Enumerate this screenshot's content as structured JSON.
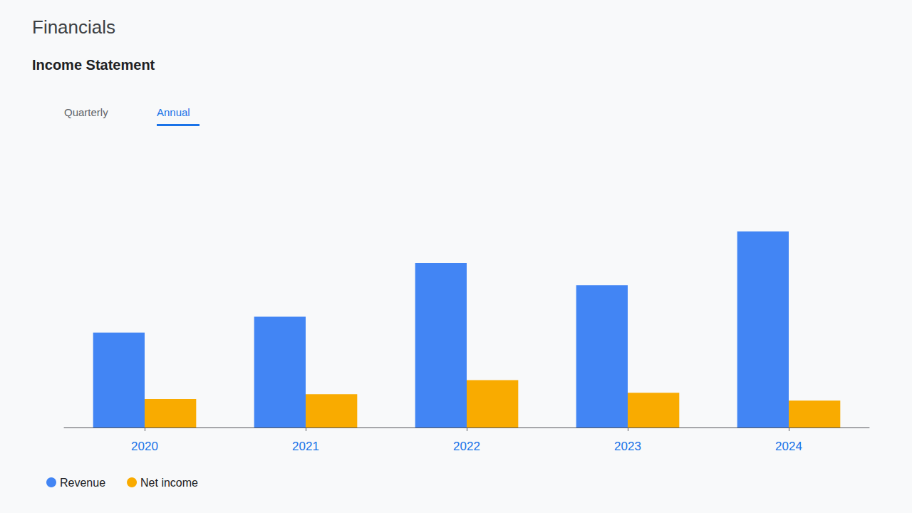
{
  "chart_data": {
    "type": "bar",
    "title": "Financials",
    "subtitle": "Income Statement",
    "annotations": [
      "Quarterly",
      "Annual"
    ],
    "categories": [
      "2020",
      "2021",
      "2022",
      "2023",
      "2024"
    ],
    "series": [
      {
        "name": "Revenue",
        "color": "#4285F4",
        "values": [
          3.0,
          3.5,
          5.2,
          4.5,
          6.2
        ]
      },
      {
        "name": "Net income",
        "color": "#F9AB00",
        "values": [
          0.9,
          1.05,
          1.5,
          1.1,
          0.85
        ]
      }
    ],
    "ylim": [
      0,
      8.556
    ],
    "grid": false,
    "legend": "bottom left",
    "tick_labels": "x"
  }
}
